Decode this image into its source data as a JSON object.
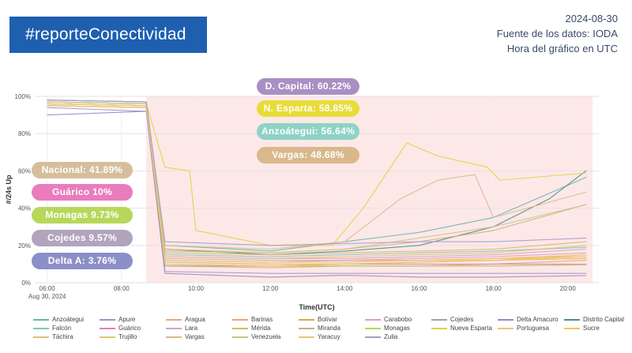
{
  "header": {
    "hashtag": "#reporteConectividad",
    "date": "2024-08-30",
    "source": "Fuente de los datos: IODA",
    "timezone": "Hora del gráfico en UTC"
  },
  "pills": [
    {
      "text": "D. Capital: 60.22%",
      "color": "#a98fc4"
    },
    {
      "text": "N. Esparta: 58.85%",
      "color": "#e8dc3a"
    },
    {
      "text": "Anzoátegui: 56.64%",
      "color": "#8ed3c5"
    },
    {
      "text": "Vargas: 48.68%",
      "color": "#d9b88c"
    },
    {
      "text": "Nacional: 41.89%",
      "color": "#d6be9c"
    },
    {
      "text": "Guárico 10%",
      "color": "#e87cbd"
    },
    {
      "text": "Monagas 9.73%",
      "color": "#b6d85a"
    },
    {
      "text": "Cojedes 9.57%",
      "color": "#b2a4bc"
    },
    {
      "text": "Delta A: 3.76%",
      "color": "#8c8fc6"
    }
  ],
  "chart_data": {
    "type": "line",
    "xlabel": "Time(UTC)",
    "ylabel": "#/24s Up",
    "x_date_label": "Aug 30, 2024",
    "xticks": [
      "06:00",
      "08:00",
      "10:00",
      "12:00",
      "14:00",
      "16:00",
      "18:00",
      "20:00"
    ],
    "yticks": [
      "0%",
      "20%",
      "40%",
      "60%",
      "80%",
      "100%"
    ],
    "xlim": [
      "05:40",
      "20:50"
    ],
    "ylim": [
      0,
      100
    ],
    "outage_window": [
      "08:40",
      "20:40"
    ],
    "grid": true,
    "legend_position": "bottom",
    "series": [
      {
        "name": "Anzoátegui",
        "color": "#6bb5a8",
        "points": [
          [
            "06:00",
            96
          ],
          [
            "08:40",
            95
          ],
          [
            "09:10",
            20
          ],
          [
            "12:00",
            17
          ],
          [
            "14:00",
            22
          ],
          [
            "16:00",
            27
          ],
          [
            "18:00",
            35
          ],
          [
            "20:30",
            56.6
          ]
        ]
      },
      {
        "name": "Apure",
        "color": "#a98fc4",
        "points": [
          [
            "06:00",
            94
          ],
          [
            "08:40",
            92
          ],
          [
            "09:10",
            6
          ],
          [
            "12:00",
            5
          ],
          [
            "14:00",
            5
          ],
          [
            "16:00",
            5
          ],
          [
            "18:00",
            5
          ],
          [
            "20:30",
            5
          ]
        ]
      },
      {
        "name": "Aragua",
        "color": "#e8a87c",
        "points": [
          [
            "06:00",
            97
          ],
          [
            "08:40",
            96
          ],
          [
            "09:10",
            12
          ],
          [
            "12:00",
            11
          ],
          [
            "14:00",
            12
          ],
          [
            "16:00",
            12
          ],
          [
            "18:00",
            13
          ],
          [
            "20:30",
            14
          ]
        ]
      },
      {
        "name": "Barinas",
        "color": "#f2a07a",
        "points": [
          [
            "06:00",
            95
          ],
          [
            "08:40",
            94
          ],
          [
            "09:10",
            9
          ],
          [
            "12:00",
            8
          ],
          [
            "14:00",
            9
          ],
          [
            "16:00",
            9
          ],
          [
            "18:00",
            10
          ],
          [
            "20:30",
            12
          ]
        ]
      },
      {
        "name": "Bolívar",
        "color": "#d9a74a",
        "points": [
          [
            "06:00",
            96
          ],
          [
            "08:40",
            95
          ],
          [
            "09:10",
            11
          ],
          [
            "12:00",
            10
          ],
          [
            "14:00",
            10
          ],
          [
            "16:00",
            11
          ],
          [
            "18:00",
            12
          ],
          [
            "20:30",
            13
          ]
        ]
      },
      {
        "name": "Carabobo",
        "color": "#d8a0c8",
        "points": [
          [
            "06:00",
            98
          ],
          [
            "08:40",
            97
          ],
          [
            "09:10",
            13
          ],
          [
            "12:00",
            12
          ],
          [
            "14:00",
            12
          ],
          [
            "16:00",
            13
          ],
          [
            "18:00",
            14
          ],
          [
            "20:30",
            16
          ]
        ]
      },
      {
        "name": "Cojedes",
        "color": "#9aa5b0",
        "points": [
          [
            "06:00",
            95
          ],
          [
            "08:40",
            94
          ],
          [
            "09:10",
            9
          ],
          [
            "12:00",
            9
          ],
          [
            "14:00",
            9
          ],
          [
            "16:00",
            9
          ],
          [
            "18:00",
            9
          ],
          [
            "20:30",
            9.6
          ]
        ]
      },
      {
        "name": "Delta Amacuro",
        "color": "#9a86c2",
        "points": [
          [
            "06:00",
            90
          ],
          [
            "08:40",
            92
          ],
          [
            "09:10",
            5
          ],
          [
            "12:00",
            3
          ],
          [
            "14:00",
            4
          ],
          [
            "16:00",
            3
          ],
          [
            "18:00",
            3
          ],
          [
            "20:30",
            3.8
          ]
        ]
      },
      {
        "name": "Distrito Capital",
        "color": "#4a8f86",
        "points": [
          [
            "06:00",
            98
          ],
          [
            "08:40",
            97
          ],
          [
            "09:10",
            18
          ],
          [
            "12:00",
            15
          ],
          [
            "14:00",
            17
          ],
          [
            "16:00",
            20
          ],
          [
            "18:00",
            30
          ],
          [
            "19:30",
            45
          ],
          [
            "20:30",
            60.2
          ]
        ]
      },
      {
        "name": "Falcón",
        "color": "#7fc7b7",
        "points": [
          [
            "06:00",
            96
          ],
          [
            "08:40",
            95
          ],
          [
            "09:10",
            15
          ],
          [
            "12:00",
            14
          ],
          [
            "14:00",
            15
          ],
          [
            "16:00",
            16
          ],
          [
            "18:00",
            17
          ],
          [
            "20:30",
            19
          ]
        ]
      },
      {
        "name": "Guárico",
        "color": "#e77dbf",
        "points": [
          [
            "06:00",
            95
          ],
          [
            "08:40",
            94
          ],
          [
            "09:10",
            10
          ],
          [
            "12:00",
            9
          ],
          [
            "14:00",
            10
          ],
          [
            "16:00",
            10
          ],
          [
            "18:00",
            10
          ],
          [
            "20:30",
            10
          ]
        ]
      },
      {
        "name": "Lara",
        "color": "#d4a3b8",
        "points": [
          [
            "06:00",
            97
          ],
          [
            "08:40",
            96
          ],
          [
            "09:10",
            14
          ],
          [
            "12:00",
            13
          ],
          [
            "14:00",
            13
          ],
          [
            "16:00",
            14
          ],
          [
            "18:00",
            15
          ],
          [
            "20:30",
            18
          ]
        ]
      },
      {
        "name": "Mérida",
        "color": "#e0b466",
        "points": [
          [
            "06:00",
            96
          ],
          [
            "08:40",
            95
          ],
          [
            "09:10",
            16
          ],
          [
            "12:00",
            15
          ],
          [
            "14:00",
            16
          ],
          [
            "16:00",
            17
          ],
          [
            "18:00",
            18
          ],
          [
            "20:30",
            22
          ]
        ]
      },
      {
        "name": "Miranda",
        "color": "#c9b27a",
        "points": [
          [
            "06:00",
            97
          ],
          [
            "08:40",
            96
          ],
          [
            "09:10",
            17
          ],
          [
            "12:00",
            16
          ],
          [
            "14:00",
            18
          ],
          [
            "16:00",
            22
          ],
          [
            "18:00",
            28
          ],
          [
            "20:30",
            42
          ]
        ]
      },
      {
        "name": "Monagas",
        "color": "#b6d85a",
        "points": [
          [
            "06:00",
            96
          ],
          [
            "08:40",
            95
          ],
          [
            "09:10",
            10
          ],
          [
            "12:00",
            9
          ],
          [
            "14:00",
            9
          ],
          [
            "16:00",
            9
          ],
          [
            "18:00",
            9
          ],
          [
            "20:30",
            9.7
          ]
        ]
      },
      {
        "name": "Nueva Esparta",
        "color": "#e3d13a",
        "points": [
          [
            "06:00",
            97
          ],
          [
            "08:40",
            96
          ],
          [
            "09:10",
            62
          ],
          [
            "09:50",
            60
          ],
          [
            "10:00",
            28
          ],
          [
            "12:00",
            20
          ],
          [
            "13:40",
            20
          ],
          [
            "14:30",
            40
          ],
          [
            "15:40",
            75
          ],
          [
            "16:30",
            68
          ],
          [
            "17:50",
            62
          ],
          [
            "18:10",
            55
          ],
          [
            "20:30",
            58.9
          ]
        ]
      },
      {
        "name": "Portuguesa",
        "color": "#ecc96a",
        "points": [
          [
            "06:00",
            95
          ],
          [
            "08:40",
            94
          ],
          [
            "09:10",
            12
          ],
          [
            "12:00",
            11
          ],
          [
            "14:00",
            11
          ],
          [
            "16:00",
            12
          ],
          [
            "18:00",
            12
          ],
          [
            "20:30",
            14
          ]
        ]
      },
      {
        "name": "Sucre",
        "color": "#f0c75e",
        "points": [
          [
            "06:00",
            96
          ],
          [
            "08:40",
            95
          ],
          [
            "09:10",
            10
          ],
          [
            "12:00",
            9
          ],
          [
            "14:00",
            10
          ],
          [
            "16:00",
            11
          ],
          [
            "18:00",
            12
          ],
          [
            "20:30",
            15
          ]
        ]
      },
      {
        "name": "Táchira",
        "color": "#dfc07a",
        "points": [
          [
            "06:00",
            97
          ],
          [
            "08:40",
            96
          ],
          [
            "09:10",
            14
          ],
          [
            "12:00",
            13
          ],
          [
            "14:00",
            14
          ],
          [
            "16:00",
            15
          ],
          [
            "18:00",
            16
          ],
          [
            "20:30",
            20
          ]
        ]
      },
      {
        "name": "Trujillo",
        "color": "#e8c46b",
        "points": [
          [
            "06:00",
            95
          ],
          [
            "08:40",
            94
          ],
          [
            "09:10",
            11
          ],
          [
            "12:00",
            10
          ],
          [
            "14:00",
            10
          ],
          [
            "16:00",
            11
          ],
          [
            "18:00",
            12
          ],
          [
            "20:30",
            13
          ]
        ]
      },
      {
        "name": "Vargas",
        "color": "#d8b98f",
        "points": [
          [
            "06:00",
            97
          ],
          [
            "08:40",
            96
          ],
          [
            "09:10",
            20
          ],
          [
            "12:00",
            18
          ],
          [
            "14:00",
            22
          ],
          [
            "15:30",
            45
          ],
          [
            "16:30",
            55
          ],
          [
            "17:30",
            58
          ],
          [
            "18:00",
            35
          ],
          [
            "20:30",
            48.7
          ]
        ]
      },
      {
        "name": "Venezuela",
        "color": "#c9c38a",
        "points": [
          [
            "06:00",
            97
          ],
          [
            "08:40",
            96
          ],
          [
            "09:10",
            18
          ],
          [
            "12:00",
            16
          ],
          [
            "14:00",
            18
          ],
          [
            "16:00",
            24
          ],
          [
            "18:00",
            30
          ],
          [
            "20:30",
            41.9
          ]
        ]
      },
      {
        "name": "Yaracuy",
        "color": "#e4c776",
        "points": [
          [
            "06:00",
            96
          ],
          [
            "08:40",
            95
          ],
          [
            "09:10",
            12
          ],
          [
            "12:00",
            11
          ],
          [
            "14:00",
            11
          ],
          [
            "16:00",
            12
          ],
          [
            "18:00",
            13
          ],
          [
            "20:30",
            15
          ]
        ]
      },
      {
        "name": "Zulia",
        "color": "#a79bc9",
        "points": [
          [
            "06:00",
            98
          ],
          [
            "08:40",
            97
          ],
          [
            "09:10",
            22
          ],
          [
            "12:00",
            20
          ],
          [
            "14:00",
            21
          ],
          [
            "16:00",
            22
          ],
          [
            "18:00",
            22
          ],
          [
            "20:30",
            24
          ]
        ]
      }
    ]
  }
}
